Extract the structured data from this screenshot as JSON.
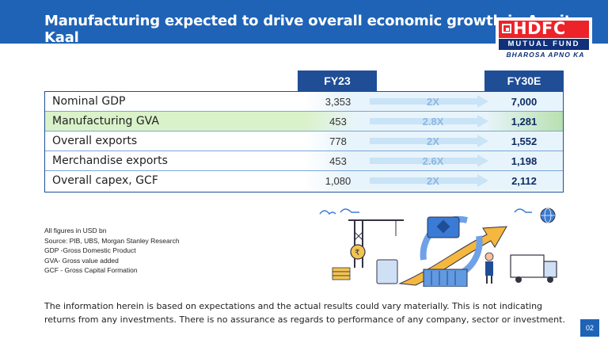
{
  "header": {
    "title": "Manufacturing expected to drive overall economic growth in Amrit Kaal",
    "bg_color": "#1f63b6"
  },
  "logo": {
    "name": "HDFC",
    "sub": "MUTUAL FUND",
    "tagline": "BHAROSA APNO KA",
    "colors": {
      "red": "#ed232a",
      "navy": "#10307a"
    }
  },
  "table": {
    "col_fy23": "FY23",
    "col_fy30": "FY30E",
    "rows": [
      {
        "label": "Nominal GDP",
        "fy23": "3,353",
        "multiple": "2X",
        "fy30": "7,000",
        "highlight": false
      },
      {
        "label": "Manufacturing GVA",
        "fy23": "453",
        "multiple": "2.8X",
        "fy30": "1,281",
        "highlight": true
      },
      {
        "label": "Overall exports",
        "fy23": "778",
        "multiple": "2X",
        "fy30": "1,552",
        "highlight": false
      },
      {
        "label": "Merchandise exports",
        "fy23": "453",
        "multiple": "2.6X",
        "fy30": "1,198",
        "highlight": false
      },
      {
        "label": "Overall capex, GCF",
        "fy23": "1,080",
        "multiple": "2X",
        "fy30": "2,112",
        "highlight": false
      }
    ]
  },
  "notes": [
    "All figures in USD bn",
    "Source: PIB, UBS, Morgan Stanley Research",
    "GDP -Gross Domestic Product",
    "GVA- Gross value added",
    "GCF - Gross Capital Formation"
  ],
  "disclaimer": "The information herein is based on expectations and the actual results could vary materially. This is not indicating returns from any investments. There is no assurance as regards to performance of any company, sector or investment.",
  "page_number": "02"
}
